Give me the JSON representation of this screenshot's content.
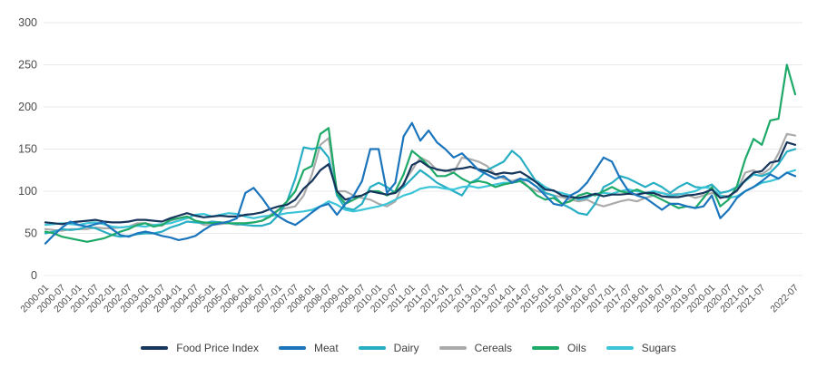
{
  "chart_data": {
    "type": "line",
    "title": "",
    "xlabel": "",
    "ylabel": "",
    "ylim": [
      0,
      300
    ],
    "grid": "horizontal",
    "legend_position": "bottom",
    "y_ticks": [
      0,
      50,
      100,
      150,
      200,
      250,
      300
    ],
    "x_axis": {
      "start": "2000-01",
      "step_months_between_points": 3,
      "tick_labels": [
        "2000-01",
        "2000-07",
        "2001-01",
        "2001-07",
        "2002-01",
        "2002-07",
        "2003-01",
        "2003-07",
        "2004-01",
        "2004-07",
        "2005-01",
        "2005-07",
        "2006-01",
        "2006-07",
        "2007-01",
        "2007-07",
        "2008-01",
        "2008-07",
        "2009-01",
        "2009-07",
        "2010-01",
        "2010-07",
        "2011-01",
        "2011-07",
        "2012-01",
        "2012-07",
        "2013-01",
        "2013-07",
        "2014-01",
        "2014-07",
        "2015-01",
        "2015-07",
        "2016-01",
        "2016-07",
        "2017-01",
        "2017-07",
        "2018-01",
        "2018-07",
        "2019-01",
        "2019-07",
        "2020-01",
        "2020-07",
        "2021-01",
        "2021-07",
        "2022-07"
      ],
      "tick_months": [
        0,
        6,
        12,
        18,
        24,
        30,
        36,
        42,
        48,
        54,
        60,
        66,
        72,
        78,
        84,
        90,
        96,
        102,
        108,
        114,
        120,
        126,
        132,
        138,
        144,
        150,
        156,
        162,
        168,
        174,
        180,
        186,
        192,
        198,
        204,
        210,
        216,
        222,
        228,
        234,
        240,
        246,
        252,
        258,
        270
      ]
    },
    "series": [
      {
        "name": "Food Price Index",
        "color": "#17365c",
        "values": [
          63,
          62,
          61,
          63,
          64,
          65,
          66,
          64,
          63,
          63,
          64,
          66,
          66,
          65,
          64,
          68,
          71,
          74,
          71,
          69,
          70,
          71,
          70,
          70,
          72,
          73,
          75,
          79,
          82,
          84,
          90,
          103,
          112,
          125,
          132,
          100,
          90,
          93,
          95,
          100,
          98,
          96,
          98,
          108,
          131,
          136,
          129,
          126,
          124,
          126,
          127,
          129,
          126,
          124,
          120,
          122,
          121,
          123,
          117,
          110,
          102,
          101,
          95,
          93,
          92,
          94,
          97,
          94,
          96,
          96,
          97,
          96,
          98,
          98,
          94,
          93,
          93,
          95,
          96,
          98,
          102,
          92,
          94,
          101,
          113,
          122,
          124,
          134,
          136,
          158,
          155
        ]
      },
      {
        "name": "Meat",
        "color": "#1b75bc",
        "values": [
          38,
          48,
          57,
          64,
          60,
          58,
          61,
          63,
          55,
          48,
          46,
          50,
          52,
          50,
          47,
          45,
          42,
          44,
          47,
          54,
          60,
          62,
          64,
          68,
          98,
          104,
          92,
          78,
          70,
          64,
          60,
          67,
          75,
          82,
          85,
          72,
          85,
          95,
          112,
          150,
          150,
          98,
          110,
          165,
          181,
          160,
          172,
          158,
          150,
          140,
          145,
          135,
          125,
          120,
          115,
          118,
          110,
          115,
          112,
          105,
          95,
          85,
          83,
          95,
          100,
          110,
          125,
          140,
          135,
          115,
          100,
          95,
          92,
          85,
          78,
          85,
          85,
          82,
          80,
          82,
          95,
          68,
          78,
          92,
          100,
          105,
          112,
          120,
          115,
          122,
          118
        ]
      },
      {
        "name": "Dairy",
        "color": "#28aec3",
        "values": [
          50,
          52,
          55,
          54,
          55,
          58,
          56,
          52,
          48,
          46,
          47,
          49,
          50,
          50,
          52,
          57,
          60,
          64,
          63,
          62,
          64,
          63,
          62,
          61,
          60,
          59,
          59,
          62,
          72,
          88,
          115,
          152,
          150,
          152,
          140,
          95,
          80,
          78,
          85,
          105,
          110,
          105,
          98,
          105,
          115,
          125,
          118,
          110,
          105,
          100,
          95,
          110,
          115,
          125,
          130,
          135,
          148,
          140,
          125,
          110,
          98,
          95,
          85,
          80,
          74,
          72,
          85,
          105,
          110,
          118,
          115,
          110,
          105,
          110,
          105,
          98,
          105,
          110,
          105,
          104,
          108,
          98,
          100,
          105,
          112,
          120,
          118,
          122,
          132,
          147,
          150
        ]
      },
      {
        "name": "Cereals",
        "color": "#ababab",
        "values": [
          55,
          54,
          53,
          55,
          55,
          55,
          57,
          56,
          56,
          57,
          58,
          62,
          62,
          60,
          59,
          65,
          68,
          70,
          65,
          60,
          60,
          61,
          62,
          60,
          62,
          63,
          65,
          72,
          78,
          80,
          82,
          95,
          120,
          155,
          163,
          100,
          100,
          95,
          92,
          90,
          85,
          82,
          88,
          110,
          125,
          140,
          135,
          125,
          125,
          122,
          140,
          138,
          135,
          130,
          120,
          115,
          112,
          115,
          105,
          100,
          98,
          95,
          93,
          90,
          88,
          90,
          85,
          82,
          85,
          88,
          90,
          88,
          92,
          95,
          98,
          96,
          97,
          96,
          92,
          95,
          98,
          95,
          94,
          100,
          122,
          125,
          120,
          127,
          145,
          168,
          166
        ]
      },
      {
        "name": "Oils",
        "color": "#1fa968",
        "values": [
          52,
          50,
          46,
          44,
          42,
          40,
          42,
          44,
          48,
          52,
          55,
          60,
          62,
          58,
          60,
          66,
          68,
          70,
          65,
          63,
          62,
          63,
          62,
          62,
          62,
          63,
          65,
          70,
          78,
          88,
          100,
          125,
          130,
          168,
          175,
          98,
          85,
          90,
          95,
          100,
          100,
          95,
          100,
          120,
          148,
          140,
          130,
          118,
          118,
          122,
          115,
          110,
          112,
          110,
          105,
          108,
          110,
          112,
          105,
          95,
          90,
          92,
          85,
          88,
          95,
          98,
          95,
          100,
          105,
          100,
          98,
          102,
          98,
          95,
          90,
          85,
          80,
          82,
          80,
          92,
          105,
          82,
          90,
          106,
          138,
          162,
          155,
          184,
          186,
          250,
          215
        ]
      },
      {
        "name": "Sugars",
        "color": "#3cc5d8",
        "values": [
          60,
          61,
          62,
          61,
          60,
          62,
          63,
          61,
          58,
          57,
          58,
          59,
          58,
          60,
          61,
          62,
          65,
          68,
          72,
          73,
          70,
          72,
          74,
          73,
          70,
          68,
          70,
          71,
          72,
          74,
          75,
          76,
          78,
          82,
          88,
          84,
          78,
          76,
          78,
          80,
          82,
          85,
          90,
          95,
          98,
          103,
          105,
          105,
          103,
          102,
          105,
          106,
          104,
          106,
          108,
          110,
          110,
          112,
          115,
          112,
          105,
          100,
          98,
          95,
          90,
          92,
          97,
          98,
          97,
          100,
          102,
          100,
          98,
          100,
          98,
          95,
          96,
          98,
          100,
          105,
          103,
          95,
          92,
          94,
          100,
          105,
          110,
          112,
          115,
          122,
          125
        ]
      }
    ],
    "legend": [
      "Food Price Index",
      "Meat",
      "Dairy",
      "Cereals",
      "Oils",
      "Sugars"
    ]
  },
  "colors": {
    "background": "#ffffff",
    "grid": "#e9e9ec",
    "y_tick_text": "#4d4d4d",
    "x_tick_text": "#4a4a4a",
    "legend_text": "#3f3f3f"
  }
}
